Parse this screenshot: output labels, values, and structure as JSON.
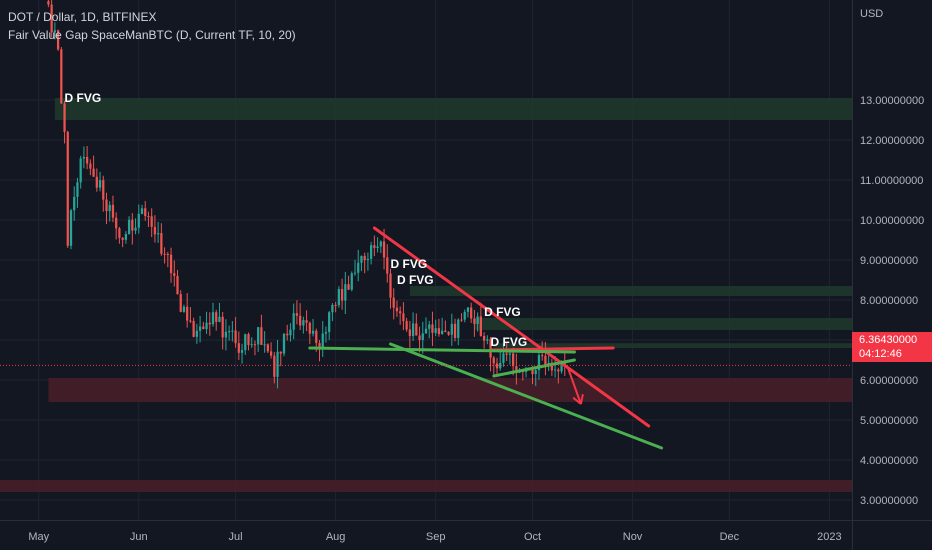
{
  "header": {
    "symbol_line": "DOT / Dollar, 1D, BITFINEX",
    "indicator_line": "Fair Value Gap SpaceManBTC (D, Current TF, 10, 20)"
  },
  "price_scale": {
    "currency": "USD",
    "current_price": "6.36430000",
    "countdown": "04:12:46"
  },
  "colors": {
    "background": "#131722",
    "up_candle": "#26a69a",
    "down_candle": "#ef5350",
    "bearish_fvg_zone": "#4a1f28",
    "bullish_fvg_zone": "#1e3a2c",
    "trendline_red": "#f23645",
    "trendline_green": "#4caf50",
    "price_tag": "#f23645"
  },
  "chart_data": {
    "type": "candlestick",
    "y_axis": {
      "min": 2.5,
      "max": 15.5,
      "ticks": [
        3,
        4,
        5,
        6,
        7,
        8,
        9,
        10,
        11,
        12,
        13
      ],
      "tick_labels": [
        "3.00000000",
        "4.00000000",
        "5.00000000",
        "6.00000000",
        "7.00000000",
        "8.00000000",
        "9.00000000",
        "10.00000000",
        "11.00000000",
        "12.00000000",
        "13.00000000"
      ]
    },
    "x_axis": {
      "start": "2022-04-19",
      "end": "2023-01-08",
      "tick_labels": [
        {
          "label": "May",
          "date": "2022-05-01"
        },
        {
          "label": "Jun",
          "date": "2022-06-01"
        },
        {
          "label": "Jul",
          "date": "2022-07-01"
        },
        {
          "label": "Aug",
          "date": "2022-08-01"
        },
        {
          "label": "Sep",
          "date": "2022-09-01"
        },
        {
          "label": "Oct",
          "date": "2022-10-01"
        },
        {
          "label": "Nov",
          "date": "2022-11-01"
        },
        {
          "label": "Dec",
          "date": "2022-12-01"
        },
        {
          "label": "2023",
          "date": "2023-01-01"
        }
      ]
    },
    "current_price_value": 6.3643,
    "anchors": [
      {
        "date": "2022-05-03",
        "close": 15.6
      },
      {
        "date": "2022-05-07",
        "close": 14.2
      },
      {
        "date": "2022-05-09",
        "close": 12.0
      },
      {
        "date": "2022-05-10",
        "close": 9.5
      },
      {
        "date": "2022-05-12",
        "close": 10.6
      },
      {
        "date": "2022-05-14",
        "close": 11.6
      },
      {
        "date": "2022-05-18",
        "close": 11.2
      },
      {
        "date": "2022-05-22",
        "close": 10.4
      },
      {
        "date": "2022-05-27",
        "close": 9.6
      },
      {
        "date": "2022-06-02",
        "close": 10.2
      },
      {
        "date": "2022-06-06",
        "close": 9.6
      },
      {
        "date": "2022-06-10",
        "close": 9.0
      },
      {
        "date": "2022-06-14",
        "close": 7.9
      },
      {
        "date": "2022-06-18",
        "close": 7.1
      },
      {
        "date": "2022-06-23",
        "close": 7.6
      },
      {
        "date": "2022-06-28",
        "close": 7.2
      },
      {
        "date": "2022-07-02",
        "close": 6.9
      },
      {
        "date": "2022-07-08",
        "close": 7.1
      },
      {
        "date": "2022-07-13",
        "close": 6.3
      },
      {
        "date": "2022-07-18",
        "close": 7.4
      },
      {
        "date": "2022-07-22",
        "close": 7.6
      },
      {
        "date": "2022-07-27",
        "close": 7.0
      },
      {
        "date": "2022-08-01",
        "close": 8.0
      },
      {
        "date": "2022-08-05",
        "close": 8.4
      },
      {
        "date": "2022-08-09",
        "close": 8.9
      },
      {
        "date": "2022-08-13",
        "close": 9.5
      },
      {
        "date": "2022-08-16",
        "close": 9.2
      },
      {
        "date": "2022-08-19",
        "close": 7.8
      },
      {
        "date": "2022-08-23",
        "close": 7.3
      },
      {
        "date": "2022-08-28",
        "close": 7.1
      },
      {
        "date": "2022-09-02",
        "close": 7.3
      },
      {
        "date": "2022-09-07",
        "close": 7.2
      },
      {
        "date": "2022-09-11",
        "close": 7.9
      },
      {
        "date": "2022-09-15",
        "close": 7.2
      },
      {
        "date": "2022-09-19",
        "close": 6.4
      },
      {
        "date": "2022-09-24",
        "close": 6.5
      },
      {
        "date": "2022-09-28",
        "close": 6.3
      },
      {
        "date": "2022-10-03",
        "close": 6.4
      },
      {
        "date": "2022-10-08",
        "close": 6.3
      },
      {
        "date": "2022-10-11",
        "close": 6.36
      }
    ],
    "fvg_zones": [
      {
        "kind": "bearish",
        "from": "2022-05-04",
        "to": "2023-01-08",
        "low": 5.45,
        "high": 6.05
      },
      {
        "kind": "bearish",
        "from": "2022-04-19",
        "to": "2023-01-08",
        "low": 3.2,
        "high": 3.5
      },
      {
        "kind": "bullish",
        "from": "2022-05-06",
        "to": "2023-01-08",
        "low": 12.5,
        "high": 13.05
      },
      {
        "kind": "bullish",
        "from": "2022-08-24",
        "to": "2023-01-08",
        "low": 8.1,
        "high": 8.35
      },
      {
        "kind": "bullish",
        "from": "2022-09-13",
        "to": "2023-01-08",
        "low": 7.25,
        "high": 7.55
      },
      {
        "kind": "bullish",
        "from": "2022-09-19",
        "to": "2023-01-08",
        "low": 6.8,
        "high": 6.92
      }
    ],
    "annotations": [
      {
        "text": "D FVG",
        "date": "2022-05-09",
        "value": 12.95
      },
      {
        "text": "D FVG",
        "date": "2022-08-18",
        "value": 8.8
      },
      {
        "text": "D FVG",
        "date": "2022-08-20",
        "value": 8.4
      },
      {
        "text": "D FVG",
        "date": "2022-09-16",
        "value": 7.6
      },
      {
        "text": "D FVG",
        "date": "2022-09-18",
        "value": 6.85
      }
    ],
    "trendlines": [
      {
        "color": "red",
        "from": {
          "date": "2022-08-13",
          "value": 9.8
        },
        "to": {
          "date": "2022-11-06",
          "value": 4.85
        }
      },
      {
        "color": "red",
        "from": {
          "date": "2022-09-18",
          "value": 6.75
        },
        "to": {
          "date": "2022-10-26",
          "value": 6.8
        }
      },
      {
        "color": "green",
        "from": {
          "date": "2022-07-24",
          "value": 6.8
        },
        "to": {
          "date": "2022-10-14",
          "value": 6.7
        }
      },
      {
        "color": "green",
        "from": {
          "date": "2022-08-18",
          "value": 6.9
        },
        "to": {
          "date": "2022-11-10",
          "value": 4.3
        }
      },
      {
        "color": "green",
        "from": {
          "date": "2022-09-19",
          "value": 6.1
        },
        "to": {
          "date": "2022-10-14",
          "value": 6.5
        }
      }
    ],
    "arrow": {
      "from": {
        "date": "2022-10-12",
        "value": 6.3
      },
      "to": {
        "date": "2022-10-16",
        "value": 5.4
      }
    }
  }
}
